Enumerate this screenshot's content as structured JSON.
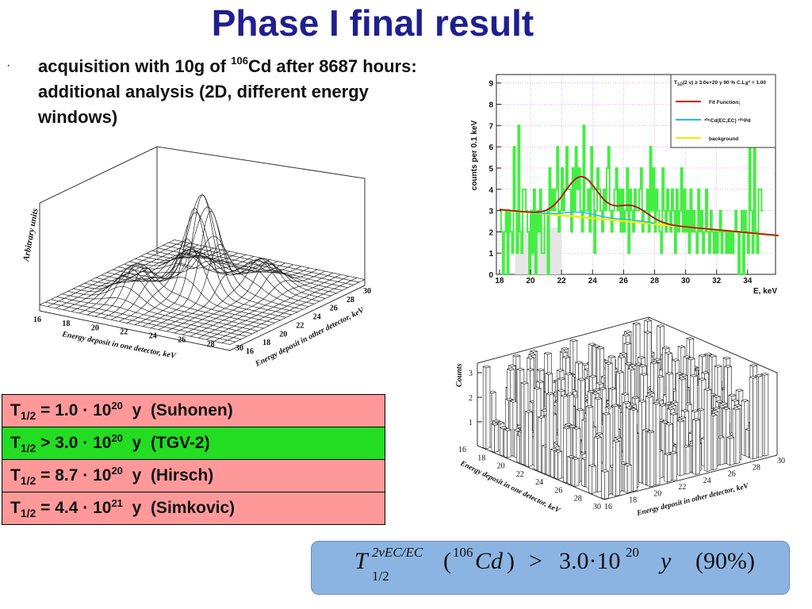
{
  "slide": {
    "title": "Phase I final result",
    "bullet": {
      "marker": "·",
      "text_a": "acquisition with 10g of ",
      "isotope_mass": "106",
      "text_b": "Cd after 8687 hours: additional analysis (2D, different energy windows)"
    }
  },
  "surface_plot": {
    "zlabel": "Arbitrary units",
    "xlabel": "Energy deposit in one detector, keV",
    "ylabel": "Energy deposit in other detector, keV",
    "x_ticks": [
      "16",
      "18",
      "20",
      "22",
      "24",
      "26",
      "28",
      "30"
    ],
    "y_ticks": [
      "16",
      "18",
      "20",
      "22",
      "24",
      "26",
      "28",
      "30"
    ]
  },
  "spectrum_plot": {
    "ylabel": "counts per 0.1 keV",
    "xlabel": "E, keV",
    "y_ticks": [
      "0",
      "1",
      "2",
      "3",
      "4",
      "5",
      "6",
      "7",
      "8",
      "9"
    ],
    "x_ticks": [
      "18",
      "20",
      "22",
      "24",
      "26",
      "28",
      "30",
      "32",
      "34"
    ],
    "legend": {
      "title_main": "T",
      "title_sub": "1/2",
      "title_rest": "(2 ν) ≥ 3.0e+20 y   90 % C.L.",
      "chi2": "χ² = 1.00",
      "items": [
        {
          "label": "Fit Function;",
          "color": "#cc1111"
        },
        {
          "label": "¹⁰⁶Cd(EC,EC) ¹⁰⁶Pd",
          "color": "#22bbee"
        },
        {
          "label": "background",
          "color": "#eeee00"
        }
      ]
    },
    "colors": {
      "histogram": "#44ee44",
      "fit": "#cc1111",
      "background": "#eeee00",
      "grid": "#cc66cc"
    }
  },
  "lego_plot": {
    "zlabel": "Counts",
    "xlabel": "Energy deposit in one detector, keV",
    "ylabel": "Energy deposit in other detector, keV",
    "z_ticks": [
      "1",
      "2",
      "3"
    ],
    "x_ticks": [
      "16",
      "18",
      "20",
      "22",
      "24",
      "26",
      "28",
      "30"
    ],
    "y_ticks": [
      "16",
      "18",
      "20",
      "22",
      "24",
      "26",
      "28",
      "30"
    ]
  },
  "results": [
    {
      "pre": "T",
      "sub": "1/2",
      "rel": " = 1.0 · 10",
      "exp": "20",
      "post": "  y  (Suhonen)",
      "color": "#ff9999"
    },
    {
      "pre": "T",
      "sub": "1/2",
      "rel": " > 3.0 · 10",
      "exp": "20",
      "post": "  y  (TGV-2)",
      "color": "#22dd22"
    },
    {
      "pre": "T",
      "sub": "1/2",
      "rel": " = 8.7 · 10",
      "exp": "20",
      "post": "  y  (Hirsch)",
      "color": "#ff9999"
    },
    {
      "pre": "T",
      "sub": "1/2",
      "rel": " = 4.4 · 10",
      "exp": "21",
      "post": "  y  (Simkovic)",
      "color": "#ff9999"
    }
  ],
  "formula": {
    "symbol": "T",
    "sup": "2νEC/EC",
    "sub": "1/2",
    "isotope_sup": "106",
    "isotope": "Cd",
    "relation": ">",
    "value": "3.0·10",
    "exp": "20",
    "unit": "y",
    "cl": "(90%)"
  }
}
